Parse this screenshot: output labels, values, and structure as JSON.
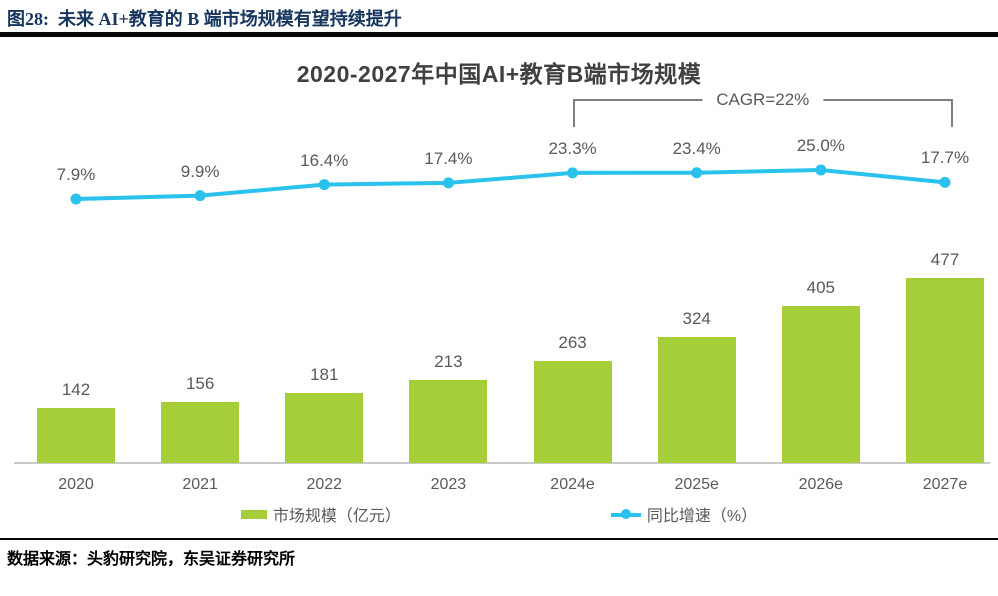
{
  "figure": {
    "header": "图28:  未来 AI+教育的 B 端市场规模有望持续提升",
    "source": "数据来源：头豹研究院，东吴证券研究所"
  },
  "colors": {
    "bar": "#A6CE39",
    "line": "#2BC1ED",
    "header_text": "#17365D",
    "label_text": "#595959",
    "axis_line": "#C9C9C9",
    "bracket": "#7F7F7F"
  },
  "chart_data": {
    "type": "bar",
    "title": "2020-2027年中国AI+教育B端市场规模",
    "categories": [
      "2020",
      "2021",
      "2022",
      "2023",
      "2024e",
      "2025e",
      "2026e",
      "2027e"
    ],
    "series": [
      {
        "name": "市场规模（亿元）",
        "type": "bar",
        "color": "#A6CE39",
        "values": [
          142,
          156,
          181,
          213,
          263,
          324,
          405,
          477
        ]
      },
      {
        "name": "同比增速（%）",
        "type": "line",
        "color": "#2BC1ED",
        "values": [
          7.9,
          9.9,
          16.4,
          17.4,
          23.3,
          23.4,
          25.0,
          17.7
        ],
        "labels": [
          "7.9%",
          "9.9%",
          "16.4%",
          "17.4%",
          "23.3%",
          "23.4%",
          "25.0%",
          "17.7%"
        ]
      }
    ],
    "annotation": {
      "label": "CAGR=22%",
      "from": "2024e",
      "to": "2027e"
    },
    "legend_position": "bottom",
    "grid": false,
    "ylim_bar": [
      0,
      520
    ],
    "ylim_line_pct": [
      0,
      30
    ]
  }
}
